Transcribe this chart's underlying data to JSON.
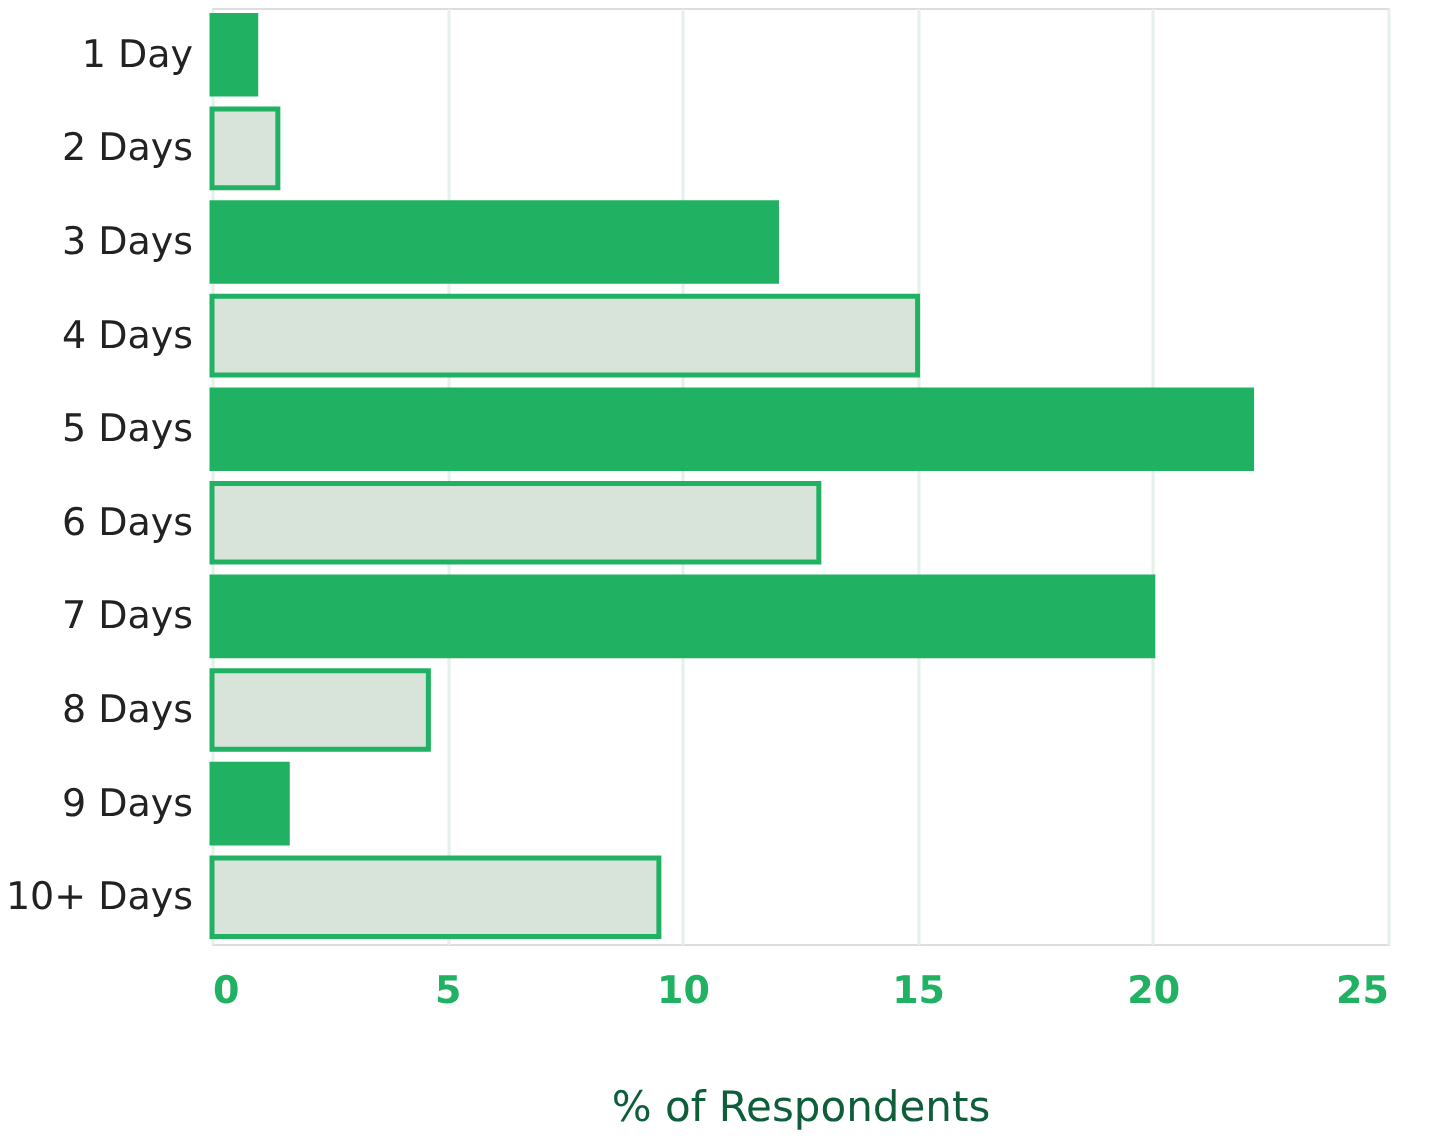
{
  "chart_data": {
    "type": "bar",
    "orientation": "horizontal",
    "xlabel": "% of Respondents",
    "categories": [
      "1 Day",
      "2 Days",
      "3 Days",
      "4 Days",
      "5 Days",
      "6 Days",
      "7 Days",
      "8 Days",
      "9 Days",
      "10+ Days"
    ],
    "values": [
      0.93,
      1.4,
      12.0,
      15.0,
      22.1,
      12.9,
      20.0,
      4.6,
      1.6,
      9.5
    ],
    "colors": [
      "#21b163",
      "#d8e3da",
      "#21b163",
      "#d8e3da",
      "#21b163",
      "#d8e3da",
      "#21b163",
      "#d8e3da",
      "#21b163",
      "#d8e3da"
    ],
    "xlim": [
      0,
      25
    ],
    "xticks": [
      0,
      5,
      10,
      15,
      20,
      25
    ],
    "grid": "x"
  }
}
